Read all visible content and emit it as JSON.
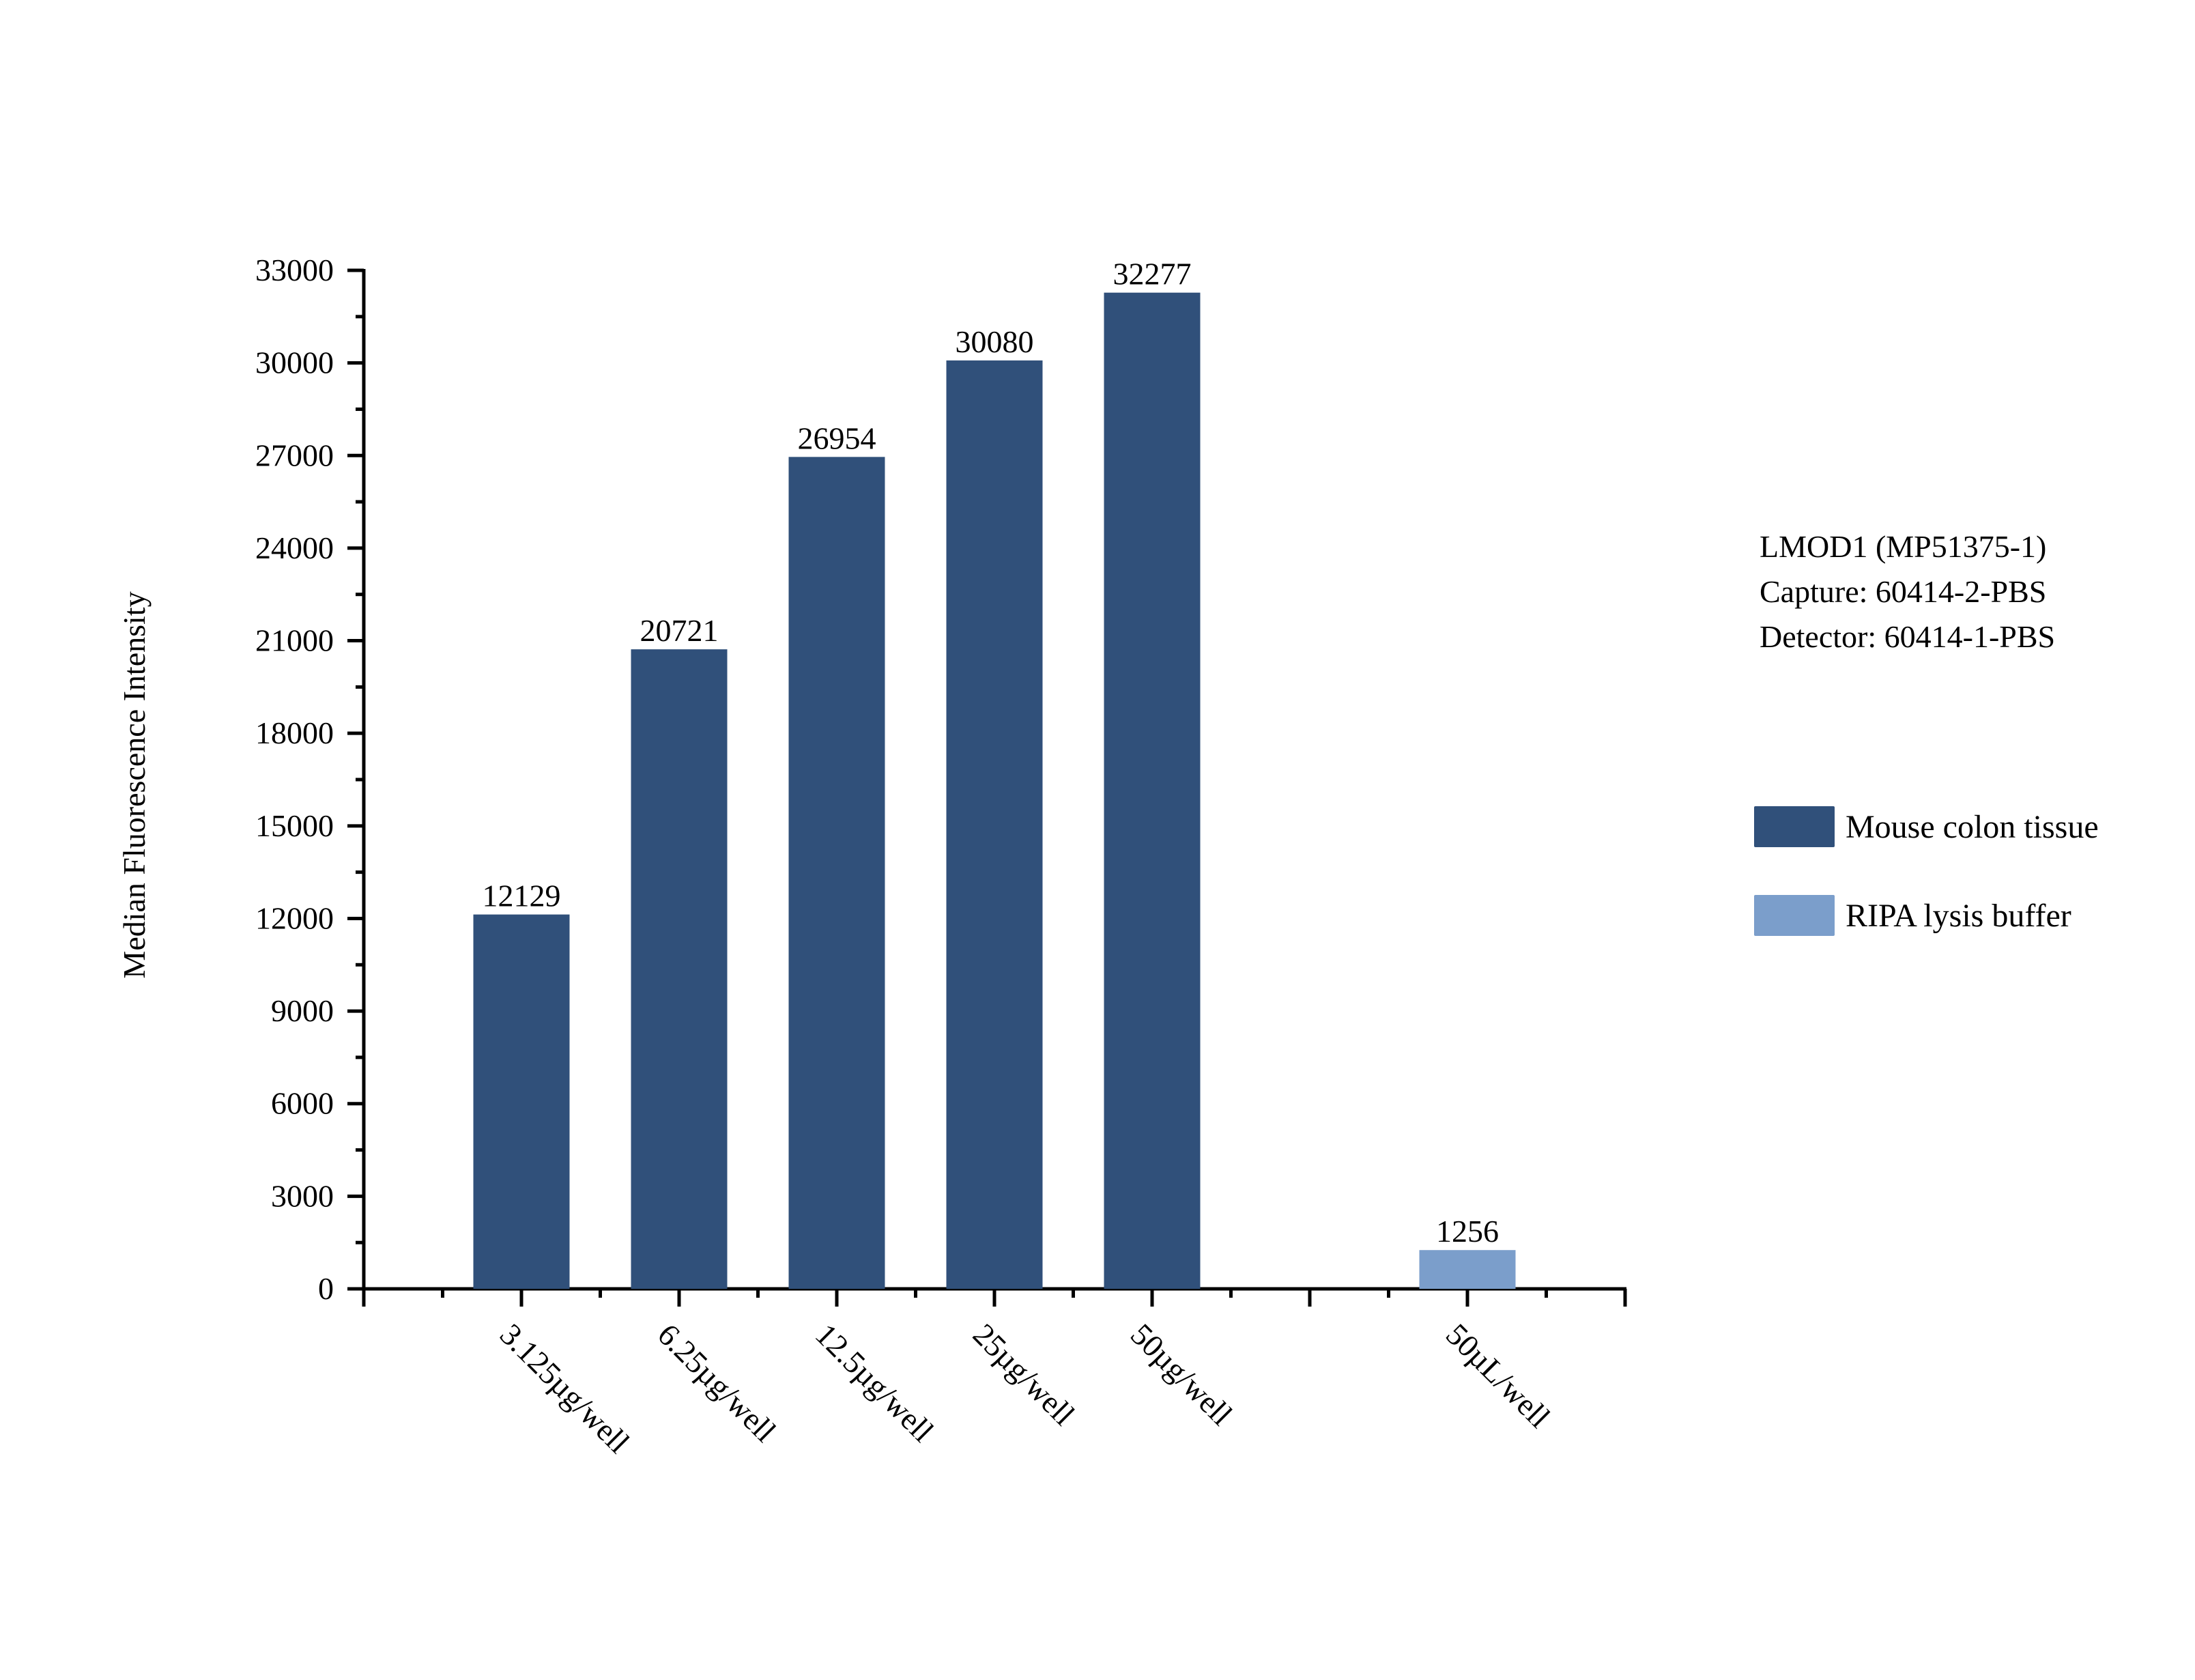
{
  "chart_data": {
    "type": "bar",
    "title": "",
    "xlabel": "",
    "ylabel": "Median Fluorescence Intensity",
    "ylim": [
      0,
      33000
    ],
    "yticks": [
      0,
      3000,
      6000,
      9000,
      12000,
      15000,
      18000,
      21000,
      24000,
      27000,
      30000,
      33000
    ],
    "grid": false,
    "legend_position": "right",
    "categories": [
      "3.125µg/well",
      "6.25µg/well",
      "12.5µg/well",
      "25µg/well",
      "50µg/well",
      "",
      "50µL/well"
    ],
    "series": [
      {
        "name": "Mouse colon tissue",
        "color": "#30507a",
        "values": [
          12129,
          20721,
          26954,
          30080,
          32277,
          null,
          null
        ]
      },
      {
        "name": "RIPA lysis buffer",
        "color": "#7b9ecb",
        "values": [
          null,
          null,
          null,
          null,
          null,
          null,
          1256
        ]
      }
    ],
    "annotations": [
      "LMOD1 (MP51375-1)",
      "Capture: 60414-2-PBS",
      "Detector: 60414-1-PBS"
    ]
  },
  "info": {
    "line1": "LMOD1 (MP51375-1)",
    "line2": "Capture: 60414-2-PBS",
    "line3": "Detector: 60414-1-PBS"
  },
  "legend": [
    {
      "label": "Mouse colon tissue",
      "color": "#30507a"
    },
    {
      "label": "RIPA lysis buffer",
      "color": "#7b9ecb"
    }
  ]
}
